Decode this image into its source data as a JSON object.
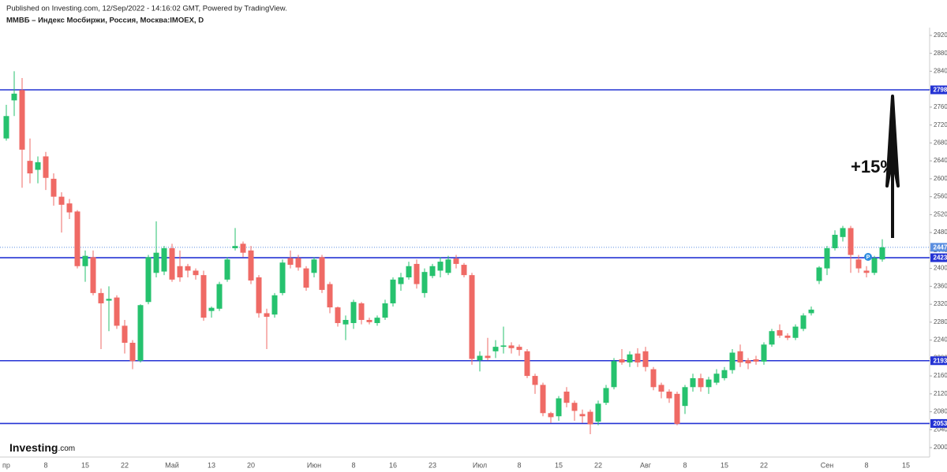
{
  "header": {
    "published": "Published on Investing.com, 12/Sep/2022 - 14:16:02 GMT, Powered by TradingView.",
    "instrument": "ММВБ – Индекс Мосбиржи, Россия, Москва:IMOEX, D"
  },
  "logo": {
    "main": "Investing",
    "suffix": ".com"
  },
  "chart_data": {
    "type": "candlestick",
    "up_color": "#26c26e",
    "down_color": "#ef6a65",
    "categories": [
      "пр",
      null,
      null,
      null,
      null,
      "8",
      null,
      null,
      null,
      null,
      "15",
      null,
      null,
      null,
      null,
      "22",
      null,
      null,
      null,
      null,
      null,
      "Май",
      null,
      null,
      null,
      null,
      "13",
      null,
      null,
      null,
      null,
      "20",
      null,
      null,
      null,
      null,
      null,
      null,
      null,
      "Июн",
      null,
      null,
      null,
      null,
      "8",
      null,
      null,
      null,
      null,
      "16",
      null,
      null,
      null,
      null,
      "23",
      null,
      null,
      null,
      null,
      null,
      "Июл",
      null,
      null,
      null,
      null,
      "8",
      null,
      null,
      null,
      null,
      "15",
      null,
      null,
      null,
      null,
      "22",
      null,
      null,
      null,
      null,
      null,
      "Авг",
      null,
      null,
      null,
      null,
      "8",
      null,
      null,
      null,
      null,
      "15",
      null,
      null,
      null,
      null,
      "22",
      null,
      null,
      null,
      null,
      null,
      null,
      null,
      "Сен",
      null,
      null,
      null,
      null,
      "8",
      null,
      null,
      null,
      null,
      "15"
    ],
    "open": [
      2690,
      2775,
      2798,
      2640,
      2620,
      2650,
      2600,
      2560,
      2545,
      2527,
      2405,
      2425,
      2345,
      2328,
      2335,
      2272,
      2234,
      2194,
      2325,
      2390,
      2393,
      2445,
      2405,
      2405,
      2395,
      2385,
      2305,
      2310,
      2375,
      2445,
      2455,
      2440,
      2380,
      2300,
      2297,
      2345,
      2423,
      2423,
      2400,
      2390,
      2425,
      2365,
      2313,
      2275,
      2278,
      2322,
      2285,
      2278,
      2290,
      2322,
      2365,
      2380,
      2410,
      2345,
      2383,
      2395,
      2390,
      2422,
      2408,
      2385,
      2195,
      2205,
      2215,
      2225,
      2228,
      2225,
      2215,
      2160,
      2140,
      2077,
      2070,
      2125,
      2100,
      2075,
      2080,
      2058,
      2100,
      2135,
      2197,
      2190,
      2210,
      2215,
      2175,
      2140,
      2125,
      2120,
      2093,
      2135,
      2155,
      2135,
      2145,
      2155,
      2173,
      2215,
      2195,
      2197,
      2192,
      2230,
      2262,
      2250,
      2245,
      2265,
      2300,
      2372,
      2400,
      2445,
      2470,
      2490,
      2420,
      2395,
      2390,
      2420,
      null,
      null,
      null
    ],
    "high": [
      2765,
      2840,
      2825,
      2690,
      2650,
      2660,
      2612,
      2570,
      2555,
      2530,
      2440,
      2440,
      2355,
      2360,
      2340,
      2285,
      2240,
      2320,
      2430,
      2505,
      2450,
      2455,
      2440,
      2410,
      2400,
      2395,
      2315,
      2370,
      2425,
      2490,
      2460,
      2450,
      2385,
      2310,
      2345,
      2420,
      2440,
      2430,
      2405,
      2425,
      2430,
      2370,
      2315,
      2295,
      2330,
      2325,
      2290,
      2295,
      2330,
      2380,
      2390,
      2415,
      2420,
      2400,
      2410,
      2425,
      2428,
      2430,
      2412,
      2390,
      2215,
      2245,
      2240,
      2270,
      2235,
      2230,
      2220,
      2165,
      2145,
      2080,
      2115,
      2135,
      2105,
      2085,
      2085,
      2105,
      2140,
      2200,
      2220,
      2215,
      2222,
      2225,
      2180,
      2145,
      2130,
      2125,
      2140,
      2165,
      2165,
      2158,
      2175,
      2180,
      2220,
      2230,
      2200,
      2205,
      2235,
      2265,
      2275,
      2255,
      2275,
      2300,
      2315,
      2405,
      2450,
      2485,
      2495,
      2495,
      2430,
      2405,
      2428,
      2465,
      null,
      null,
      null
    ],
    "low": [
      2685,
      2740,
      2580,
      2590,
      2590,
      2575,
      2540,
      2480,
      2510,
      2400,
      2370,
      2340,
      2220,
      2260,
      2265,
      2210,
      2175,
      2190,
      2320,
      2380,
      2385,
      2370,
      2370,
      2380,
      2375,
      2283,
      2290,
      2305,
      2370,
      2440,
      2425,
      2365,
      2290,
      2220,
      2290,
      2340,
      2400,
      2395,
      2350,
      2380,
      2345,
      2300,
      2270,
      2240,
      2265,
      2275,
      2275,
      2272,
      2285,
      2315,
      2350,
      2375,
      2355,
      2335,
      2378,
      2380,
      2385,
      2400,
      2380,
      2185,
      2170,
      2195,
      2200,
      2210,
      2210,
      2205,
      2155,
      2120,
      2070,
      2055,
      2060,
      2090,
      2060,
      2055,
      2030,
      2050,
      2095,
      2130,
      2185,
      2180,
      2180,
      2170,
      2128,
      2110,
      2100,
      2050,
      2075,
      2125,
      2125,
      2120,
      2140,
      2150,
      2165,
      2180,
      2175,
      2185,
      2185,
      2225,
      2245,
      2240,
      2240,
      2260,
      2295,
      2365,
      2385,
      2440,
      2460,
      2390,
      2390,
      2380,
      2385,
      2415,
      null,
      null,
      null
    ],
    "close": [
      2740,
      2790,
      2665,
      2612,
      2637,
      2602,
      2560,
      2542,
      2525,
      2405,
      2428,
      2345,
      2322,
      2332,
      2272,
      2234,
      2193,
      2318,
      2425,
      2435,
      2445,
      2375,
      2380,
      2395,
      2385,
      2290,
      2312,
      2365,
      2420,
      2450,
      2435,
      2373,
      2300,
      2292,
      2340,
      2413,
      2408,
      2402,
      2357,
      2420,
      2352,
      2313,
      2278,
      2285,
      2325,
      2285,
      2280,
      2290,
      2322,
      2375,
      2380,
      2405,
      2365,
      2392,
      2405,
      2415,
      2420,
      2410,
      2385,
      2198,
      2205,
      2200,
      2225,
      2228,
      2222,
      2218,
      2160,
      2140,
      2077,
      2068,
      2110,
      2100,
      2082,
      2070,
      2052,
      2098,
      2133,
      2193,
      2190,
      2208,
      2190,
      2180,
      2135,
      2125,
      2110,
      2053,
      2135,
      2155,
      2135,
      2152,
      2165,
      2173,
      2212,
      2190,
      2188,
      2192,
      2230,
      2260,
      2250,
      2245,
      2270,
      2295,
      2308,
      2402,
      2445,
      2475,
      2490,
      2430,
      2400,
      2390,
      2423,
      2447.07,
      null,
      null,
      null
    ],
    "ylim": [
      1979,
      2999
    ],
    "yticks": [
      {
        "value": 2000,
        "label": "2000.00"
      },
      {
        "value": 2040,
        "label": "2040.00"
      },
      {
        "value": 2080,
        "label": "2080.00"
      },
      {
        "value": 2120,
        "label": "2120.00"
      },
      {
        "value": 2160,
        "label": "2160.00"
      },
      {
        "value": 2200,
        "label": "2200.00"
      },
      {
        "value": 2240,
        "label": "2240.00"
      },
      {
        "value": 2280,
        "label": "2280.00"
      },
      {
        "value": 2320,
        "label": "2320.00"
      },
      {
        "value": 2360,
        "label": "2360.00"
      },
      {
        "value": 2400,
        "label": "2400.00"
      },
      {
        "value": 2440,
        "label": "2440.00"
      },
      {
        "value": 2480,
        "label": "2480.00"
      },
      {
        "value": 2520,
        "label": "2520.00"
      },
      {
        "value": 2560,
        "label": "2560.00"
      },
      {
        "value": 2600,
        "label": "2600.00"
      },
      {
        "value": 2640,
        "label": "2640.00"
      },
      {
        "value": 2680,
        "label": "2680.00"
      },
      {
        "value": 2720,
        "label": "2720.00"
      },
      {
        "value": 2760,
        "label": "2760.00"
      },
      {
        "value": 2800,
        "label": "2800.00"
      },
      {
        "value": 2840,
        "label": "2840.00"
      },
      {
        "value": 2880,
        "label": "2880.00"
      },
      {
        "value": 2920,
        "label": "2920.00"
      }
    ],
    "grid": false,
    "levels": [
      {
        "value": 2798.5,
        "label": "2798.50"
      },
      {
        "value": 2423.82,
        "label": "2423.82"
      },
      {
        "value": 2193.99,
        "label": "2193.99"
      },
      {
        "value": 2053.9,
        "label": "2053.90"
      }
    ],
    "level_color": "#2433d4",
    "last_price": {
      "value": 2447.07,
      "label": "2447.07"
    },
    "last_price_color": "#5b8fe0",
    "annotation": "+15%",
    "marker_label": "P"
  }
}
